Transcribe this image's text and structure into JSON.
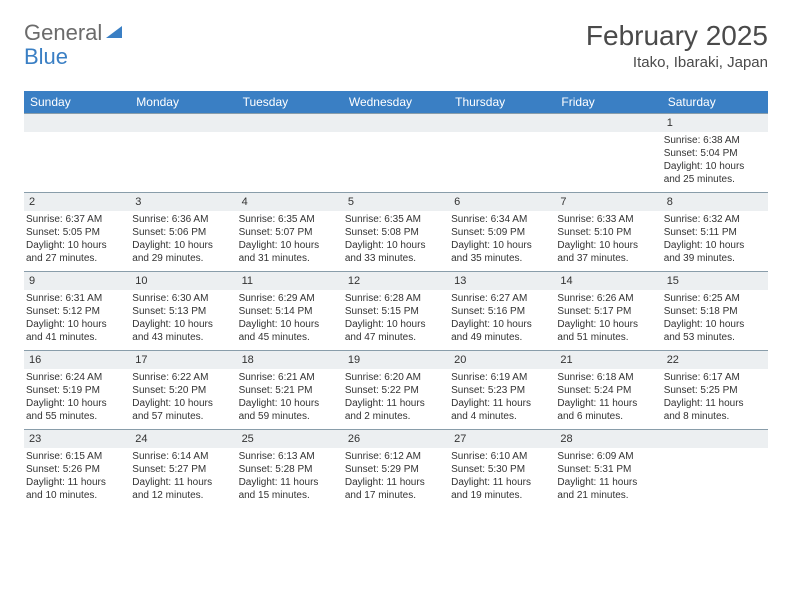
{
  "logo": {
    "text1": "General",
    "text2": "Blue"
  },
  "title": "February 2025",
  "location": "Itako, Ibaraki, Japan",
  "colors": {
    "header_bg": "#3a7fc4",
    "header_text": "#ffffff",
    "daynum_bg": "#eceff1",
    "border": "#899daa",
    "text": "#333333"
  },
  "dayNames": [
    "Sunday",
    "Monday",
    "Tuesday",
    "Wednesday",
    "Thursday",
    "Friday",
    "Saturday"
  ],
  "weeks": [
    [
      null,
      null,
      null,
      null,
      null,
      null,
      {
        "n": "1",
        "sr": "Sunrise: 6:38 AM",
        "ss": "Sunset: 5:04 PM",
        "dl1": "Daylight: 10 hours",
        "dl2": "and 25 minutes."
      }
    ],
    [
      {
        "n": "2",
        "sr": "Sunrise: 6:37 AM",
        "ss": "Sunset: 5:05 PM",
        "dl1": "Daylight: 10 hours",
        "dl2": "and 27 minutes."
      },
      {
        "n": "3",
        "sr": "Sunrise: 6:36 AM",
        "ss": "Sunset: 5:06 PM",
        "dl1": "Daylight: 10 hours",
        "dl2": "and 29 minutes."
      },
      {
        "n": "4",
        "sr": "Sunrise: 6:35 AM",
        "ss": "Sunset: 5:07 PM",
        "dl1": "Daylight: 10 hours",
        "dl2": "and 31 minutes."
      },
      {
        "n": "5",
        "sr": "Sunrise: 6:35 AM",
        "ss": "Sunset: 5:08 PM",
        "dl1": "Daylight: 10 hours",
        "dl2": "and 33 minutes."
      },
      {
        "n": "6",
        "sr": "Sunrise: 6:34 AM",
        "ss": "Sunset: 5:09 PM",
        "dl1": "Daylight: 10 hours",
        "dl2": "and 35 minutes."
      },
      {
        "n": "7",
        "sr": "Sunrise: 6:33 AM",
        "ss": "Sunset: 5:10 PM",
        "dl1": "Daylight: 10 hours",
        "dl2": "and 37 minutes."
      },
      {
        "n": "8",
        "sr": "Sunrise: 6:32 AM",
        "ss": "Sunset: 5:11 PM",
        "dl1": "Daylight: 10 hours",
        "dl2": "and 39 minutes."
      }
    ],
    [
      {
        "n": "9",
        "sr": "Sunrise: 6:31 AM",
        "ss": "Sunset: 5:12 PM",
        "dl1": "Daylight: 10 hours",
        "dl2": "and 41 minutes."
      },
      {
        "n": "10",
        "sr": "Sunrise: 6:30 AM",
        "ss": "Sunset: 5:13 PM",
        "dl1": "Daylight: 10 hours",
        "dl2": "and 43 minutes."
      },
      {
        "n": "11",
        "sr": "Sunrise: 6:29 AM",
        "ss": "Sunset: 5:14 PM",
        "dl1": "Daylight: 10 hours",
        "dl2": "and 45 minutes."
      },
      {
        "n": "12",
        "sr": "Sunrise: 6:28 AM",
        "ss": "Sunset: 5:15 PM",
        "dl1": "Daylight: 10 hours",
        "dl2": "and 47 minutes."
      },
      {
        "n": "13",
        "sr": "Sunrise: 6:27 AM",
        "ss": "Sunset: 5:16 PM",
        "dl1": "Daylight: 10 hours",
        "dl2": "and 49 minutes."
      },
      {
        "n": "14",
        "sr": "Sunrise: 6:26 AM",
        "ss": "Sunset: 5:17 PM",
        "dl1": "Daylight: 10 hours",
        "dl2": "and 51 minutes."
      },
      {
        "n": "15",
        "sr": "Sunrise: 6:25 AM",
        "ss": "Sunset: 5:18 PM",
        "dl1": "Daylight: 10 hours",
        "dl2": "and 53 minutes."
      }
    ],
    [
      {
        "n": "16",
        "sr": "Sunrise: 6:24 AM",
        "ss": "Sunset: 5:19 PM",
        "dl1": "Daylight: 10 hours",
        "dl2": "and 55 minutes."
      },
      {
        "n": "17",
        "sr": "Sunrise: 6:22 AM",
        "ss": "Sunset: 5:20 PM",
        "dl1": "Daylight: 10 hours",
        "dl2": "and 57 minutes."
      },
      {
        "n": "18",
        "sr": "Sunrise: 6:21 AM",
        "ss": "Sunset: 5:21 PM",
        "dl1": "Daylight: 10 hours",
        "dl2": "and 59 minutes."
      },
      {
        "n": "19",
        "sr": "Sunrise: 6:20 AM",
        "ss": "Sunset: 5:22 PM",
        "dl1": "Daylight: 11 hours",
        "dl2": "and 2 minutes."
      },
      {
        "n": "20",
        "sr": "Sunrise: 6:19 AM",
        "ss": "Sunset: 5:23 PM",
        "dl1": "Daylight: 11 hours",
        "dl2": "and 4 minutes."
      },
      {
        "n": "21",
        "sr": "Sunrise: 6:18 AM",
        "ss": "Sunset: 5:24 PM",
        "dl1": "Daylight: 11 hours",
        "dl2": "and 6 minutes."
      },
      {
        "n": "22",
        "sr": "Sunrise: 6:17 AM",
        "ss": "Sunset: 5:25 PM",
        "dl1": "Daylight: 11 hours",
        "dl2": "and 8 minutes."
      }
    ],
    [
      {
        "n": "23",
        "sr": "Sunrise: 6:15 AM",
        "ss": "Sunset: 5:26 PM",
        "dl1": "Daylight: 11 hours",
        "dl2": "and 10 minutes."
      },
      {
        "n": "24",
        "sr": "Sunrise: 6:14 AM",
        "ss": "Sunset: 5:27 PM",
        "dl1": "Daylight: 11 hours",
        "dl2": "and 12 minutes."
      },
      {
        "n": "25",
        "sr": "Sunrise: 6:13 AM",
        "ss": "Sunset: 5:28 PM",
        "dl1": "Daylight: 11 hours",
        "dl2": "and 15 minutes."
      },
      {
        "n": "26",
        "sr": "Sunrise: 6:12 AM",
        "ss": "Sunset: 5:29 PM",
        "dl1": "Daylight: 11 hours",
        "dl2": "and 17 minutes."
      },
      {
        "n": "27",
        "sr": "Sunrise: 6:10 AM",
        "ss": "Sunset: 5:30 PM",
        "dl1": "Daylight: 11 hours",
        "dl2": "and 19 minutes."
      },
      {
        "n": "28",
        "sr": "Sunrise: 6:09 AM",
        "ss": "Sunset: 5:31 PM",
        "dl1": "Daylight: 11 hours",
        "dl2": "and 21 minutes."
      },
      null
    ]
  ]
}
